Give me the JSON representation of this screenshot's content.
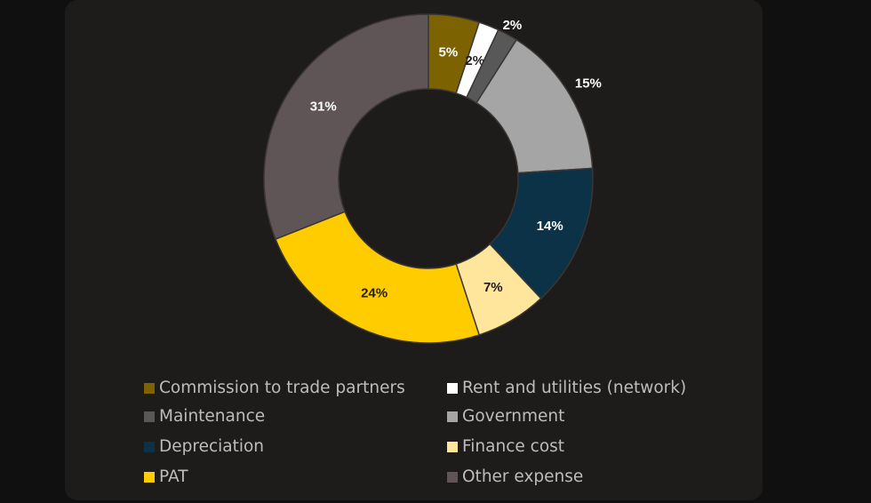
{
  "chart_data": {
    "type": "donut",
    "categories": [
      "Commission to trade partners",
      "Rent and utilities (network)",
      "Maintenance",
      "Government",
      "Depreciation",
      "Finance cost",
      "PAT",
      "Other expense"
    ],
    "values": [
      5,
      2,
      2,
      15,
      14,
      7,
      24,
      31
    ],
    "value_labels": [
      "5%",
      "2%",
      "2%",
      "15%",
      "14%",
      "7%",
      "24%",
      "31%"
    ],
    "colors": [
      "#7c6200",
      "#ffffff",
      "#585858",
      "#a5a5a5",
      "#0b3246",
      "#ffe69c",
      "#ffcc00",
      "#5f5456"
    ],
    "legend": "bottom"
  }
}
